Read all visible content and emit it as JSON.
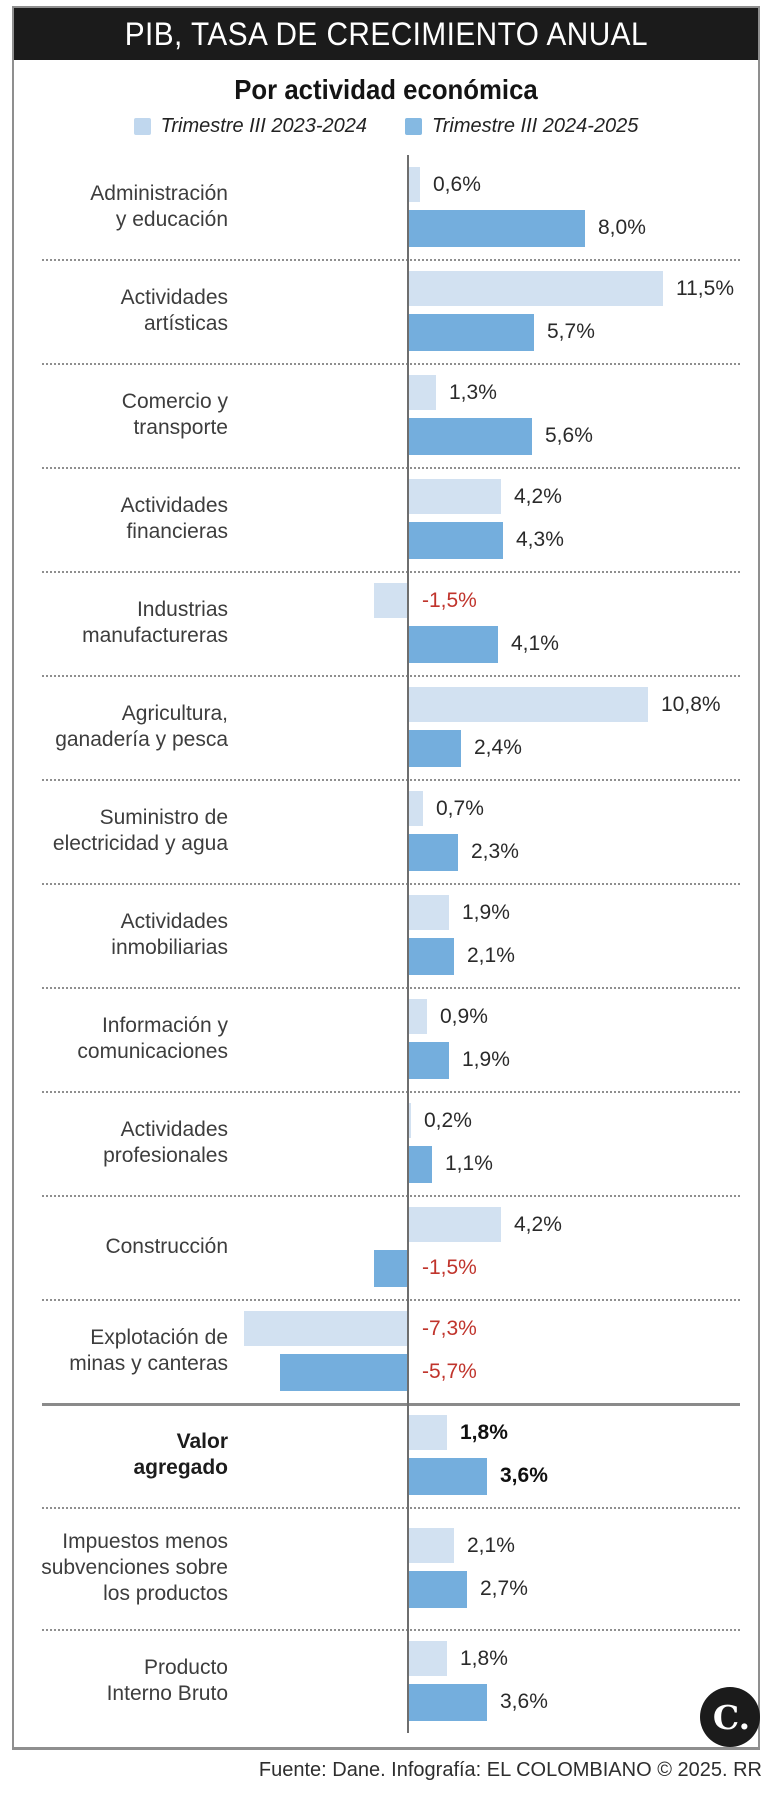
{
  "header": {
    "title": "PIB, TASA DE CRECIMIENTO ANUAL"
  },
  "subtitle": "Por actividad económica",
  "legend": {
    "items": [
      {
        "label": "Trimestre III 2023-2024",
        "color": "#c0d7ee"
      },
      {
        "label": "Trimestre III 2024-2025",
        "color": "#85b9e2"
      }
    ]
  },
  "colors": {
    "series1_bar": "#d2e1f1",
    "series2_bar": "#74aedd",
    "negative_value_text": "#c0342c",
    "header_bg": "#1b1b1b"
  },
  "chart_data": {
    "type": "bar",
    "orientation": "horizontal",
    "value_unit": "%",
    "title": "PIB, TASA DE CRECIMIENTO ANUAL",
    "subtitle": "Por actividad económica",
    "legend_position": "top",
    "grid": false,
    "xlim": [
      -8,
      12.5
    ],
    "series_names": [
      "Trimestre III 2023-2024",
      "Trimestre III 2024-2025"
    ],
    "categories": [
      {
        "label_lines": [
          "Administración",
          "y educación"
        ],
        "values": [
          0.6,
          8.0
        ],
        "display": [
          "0,6%",
          "8,0%"
        ],
        "emphasis": false,
        "strong_separator_before": false
      },
      {
        "label_lines": [
          "Actividades",
          "artísticas"
        ],
        "values": [
          11.5,
          5.7
        ],
        "display": [
          "11,5%",
          "5,7%"
        ],
        "emphasis": false,
        "strong_separator_before": false
      },
      {
        "label_lines": [
          "Comercio y",
          "transporte"
        ],
        "values": [
          1.3,
          5.6
        ],
        "display": [
          "1,3%",
          "5,6%"
        ],
        "emphasis": false,
        "strong_separator_before": false
      },
      {
        "label_lines": [
          "Actividades",
          "financieras"
        ],
        "values": [
          4.2,
          4.3
        ],
        "display": [
          "4,2%",
          "4,3%"
        ],
        "emphasis": false,
        "strong_separator_before": false
      },
      {
        "label_lines": [
          "Industrias",
          "manufactureras"
        ],
        "values": [
          -1.5,
          4.1
        ],
        "display": [
          "-1,5%",
          "4,1%"
        ],
        "emphasis": false,
        "strong_separator_before": false
      },
      {
        "label_lines": [
          "Agricultura,",
          "ganadería y pesca"
        ],
        "values": [
          10.8,
          2.4
        ],
        "display": [
          "10,8%",
          "2,4%"
        ],
        "emphasis": false,
        "strong_separator_before": false
      },
      {
        "label_lines": [
          "Suministro de",
          "electricidad y agua"
        ],
        "values": [
          0.7,
          2.3
        ],
        "display": [
          "0,7%",
          "2,3%"
        ],
        "emphasis": false,
        "strong_separator_before": false
      },
      {
        "label_lines": [
          "Actividades",
          "inmobiliarias"
        ],
        "values": [
          1.9,
          2.1
        ],
        "display": [
          "1,9%",
          "2,1%"
        ],
        "emphasis": false,
        "strong_separator_before": false
      },
      {
        "label_lines": [
          "Información y",
          "comunicaciones"
        ],
        "values": [
          0.9,
          1.9
        ],
        "display": [
          "0,9%",
          "1,9%"
        ],
        "emphasis": false,
        "strong_separator_before": false
      },
      {
        "label_lines": [
          "Actividades",
          "profesionales"
        ],
        "values": [
          0.2,
          1.1
        ],
        "display": [
          "0,2%",
          "1,1%"
        ],
        "emphasis": false,
        "strong_separator_before": false
      },
      {
        "label_lines": [
          "Construcción"
        ],
        "values": [
          4.2,
          -1.5
        ],
        "display": [
          "4,2%",
          "-1,5%"
        ],
        "emphasis": false,
        "strong_separator_before": false
      },
      {
        "label_lines": [
          "Explotación de",
          "minas y canteras"
        ],
        "values": [
          -7.3,
          -5.7
        ],
        "display": [
          "-7,3%",
          "-5,7%"
        ],
        "emphasis": false,
        "strong_separator_before": false
      },
      {
        "label_lines": [
          "Valor",
          "agregado"
        ],
        "values": [
          1.8,
          3.6
        ],
        "display": [
          "1,8%",
          "3,6%"
        ],
        "emphasis": true,
        "strong_separator_before": true
      },
      {
        "label_lines": [
          "Impuestos menos",
          "subvenciones sobre",
          "los productos"
        ],
        "values": [
          2.1,
          2.7
        ],
        "display": [
          "2,1%",
          "2,7%"
        ],
        "emphasis": false,
        "strong_separator_before": false
      },
      {
        "label_lines": [
          "Producto",
          "Interno Bruto"
        ],
        "values": [
          1.8,
          3.6
        ],
        "display": [
          "1,8%",
          "3,6%"
        ],
        "emphasis": false,
        "strong_separator_before": false
      }
    ]
  },
  "footer": {
    "credit": "Fuente: Dane. Infografía: EL COLOMBIANO © 2025. RR"
  },
  "logo": {
    "text": "C."
  }
}
